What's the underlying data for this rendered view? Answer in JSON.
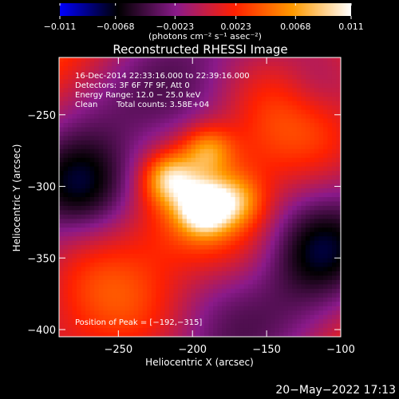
{
  "chart_data": {
    "type": "heatmap",
    "title": "Reconstructed RHESSI Image",
    "xlabel": "Heliocentric X (arcsec)",
    "ylabel": "Heliocentric Y (arcsec)",
    "xlim": [
      -290,
      -100
    ],
    "ylim": [
      -405,
      -210
    ],
    "x_ticks": [
      -250,
      -200,
      -150,
      -100
    ],
    "y_ticks": [
      -250,
      -300,
      -350,
      -400
    ],
    "x_tick_labels": [
      "−250",
      "−200",
      "−150",
      "−100"
    ],
    "y_tick_labels": [
      "−250",
      "−300",
      "−350",
      "−400"
    ],
    "colorbar": {
      "range": [
        -0.011,
        0.011
      ],
      "ticks": [
        -0.011,
        -0.0068,
        -0.0023,
        0.0023,
        0.0068,
        0.011
      ],
      "tick_labels": [
        "−0.011",
        "−0.0068",
        "−0.0023",
        "0.0023",
        "0.0068",
        "0.011"
      ],
      "unit_label": "(photons cm⁻² s⁻¹ asec⁻²)",
      "colormap": [
        "#0000ff",
        "#000000",
        "#8a1a8a",
        "#ff2000",
        "#ff9a00",
        "#ffffff"
      ]
    },
    "sources": [
      {
        "x": -192,
        "y": -315,
        "amplitude": 0.011
      },
      {
        "x": -215,
        "y": -295,
        "amplitude": 0.0075
      },
      {
        "x": -190,
        "y": -275,
        "amplitude": 0.0058
      },
      {
        "x": -170,
        "y": -310,
        "amplitude": 0.0045
      }
    ],
    "annotations": {
      "time_range": "16-Dec-2014 22:33:16.000 to 22:39:16.000",
      "detectors": "Detectors: 3F 6F 7F 9F, Att 0",
      "energy_range": "Energy Range: 12.0 − 25.0 keV",
      "clean_label": "Clean",
      "total_counts": "Total counts: 3.58E+04",
      "peak_position": "Position of Peak = [−192,−315]"
    },
    "timestamp": "20−May−2022 17:13"
  }
}
